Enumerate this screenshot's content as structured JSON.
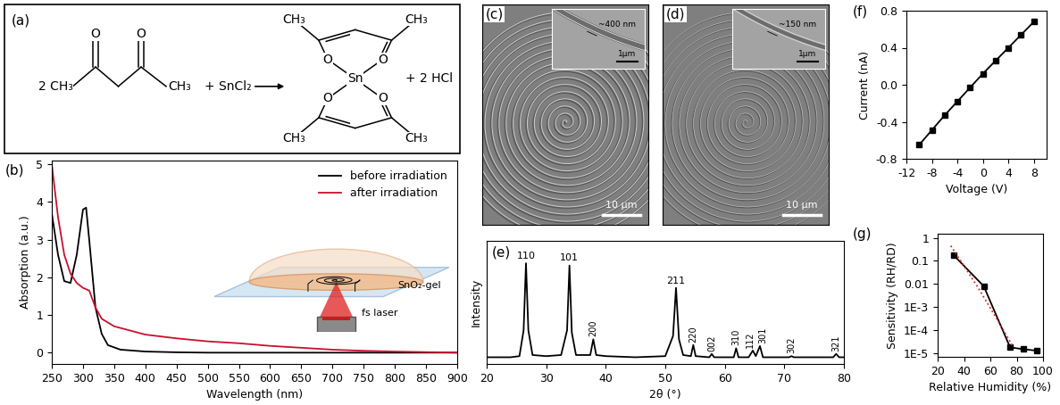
{
  "chart_data": [
    {
      "panel": "(b)",
      "type": "line",
      "xlabel": "Wavelength (nm)",
      "ylabel": "Absorption (a.u.)",
      "xlim": [
        250,
        900
      ],
      "xticks": [
        250,
        300,
        350,
        400,
        450,
        500,
        550,
        600,
        650,
        700,
        750,
        800,
        850,
        900
      ],
      "ylim": [
        -0.3,
        5.1
      ],
      "yticks": [
        0,
        1,
        2,
        3,
        4,
        5
      ],
      "legend": "upper right",
      "annotations": [
        "SnO₂-gel",
        "fs laser"
      ],
      "series": [
        {
          "name": "before irradiation",
          "color": "#000000",
          "line_style": "solid",
          "x": [
            250,
            260,
            270,
            280,
            290,
            300,
            305,
            310,
            320,
            330,
            340,
            360,
            400,
            450,
            500,
            600,
            700,
            800,
            900
          ],
          "values": [
            3.7,
            2.6,
            1.9,
            1.85,
            2.6,
            3.8,
            3.85,
            3.0,
            1.2,
            0.5,
            0.2,
            0.08,
            0.03,
            0.01,
            0.0,
            0.0,
            0.0,
            0.0,
            0.0
          ]
        },
        {
          "name": "after irradiation",
          "color": "#c8102e",
          "line_style": "solid",
          "x": [
            250,
            260,
            270,
            280,
            290,
            300,
            310,
            320,
            330,
            350,
            400,
            450,
            500,
            550,
            600,
            650,
            700,
            750,
            800,
            900
          ],
          "values": [
            5.0,
            3.6,
            2.6,
            2.1,
            1.85,
            1.72,
            1.65,
            1.2,
            0.9,
            0.7,
            0.48,
            0.38,
            0.3,
            0.25,
            0.18,
            0.13,
            0.08,
            0.05,
            0.03,
            0.0
          ]
        }
      ]
    },
    {
      "panel": "(e)",
      "type": "line",
      "xlabel": "2θ (°)",
      "ylabel": "Intensity",
      "xlim": [
        20,
        80
      ],
      "xticks": [
        20,
        30,
        40,
        50,
        60,
        70,
        80
      ],
      "ylim": [
        0,
        110
      ],
      "tick_labels": "x",
      "series": [
        {
          "color": "#000000",
          "line_style": "solid",
          "x": [
            20,
            22,
            24,
            25.5,
            26.2,
            26.6,
            27.0,
            27.7,
            30,
            32.5,
            33.5,
            33.9,
            34.3,
            35,
            37.4,
            37.9,
            38.4,
            40,
            45,
            50,
            51.3,
            51.8,
            52.3,
            53,
            54.3,
            54.7,
            55.1,
            57.4,
            57.8,
            58.2,
            60,
            61.5,
            61.9,
            62.3,
            64.0,
            64.7,
            65.2,
            65.9,
            66.4,
            68,
            70.8,
            71.2,
            71.6,
            75,
            78.2,
            78.7,
            79.2,
            80
          ],
          "values": [
            6,
            6,
            6,
            7,
            30,
            90,
            30,
            8,
            7,
            8,
            30,
            88,
            28,
            8,
            8,
            22,
            8,
            7,
            6,
            7,
            25,
            68,
            22,
            8,
            7,
            17,
            7,
            6,
            9,
            6,
            6,
            6,
            14,
            6,
            6,
            12,
            7,
            16,
            6,
            6,
            6,
            7,
            6,
            6,
            6,
            9,
            6,
            6
          ]
        }
      ],
      "peak_labels": [
        {
          "label": "110",
          "x": 26.6,
          "value": 90
        },
        {
          "label": "101",
          "x": 33.9,
          "value": 88
        },
        {
          "label": "200",
          "x": 37.9,
          "value": 22
        },
        {
          "label": "211",
          "x": 51.8,
          "value": 68
        },
        {
          "label": "220",
          "x": 54.7,
          "value": 17
        },
        {
          "label": "002",
          "x": 57.8,
          "value": 9
        },
        {
          "label": "310",
          "x": 61.9,
          "value": 14
        },
        {
          "label": "112",
          "x": 64.7,
          "value": 12
        },
        {
          "label": "301",
          "x": 65.9,
          "value": 16
        },
        {
          "label": "302",
          "x": 71.2,
          "value": 7
        },
        {
          "label": "321",
          "x": 78.7,
          "value": 9
        }
      ]
    },
    {
      "panel": "(f)",
      "type": "line",
      "xlabel": "Voltage (V)",
      "ylabel": "Current (nA)",
      "xlim": [
        -12,
        10
      ],
      "xticks": [
        -12,
        -8,
        -4,
        0,
        4,
        8
      ],
      "ylim": [
        -0.8,
        0.8
      ],
      "yticks": [
        -0.8,
        -0.4,
        {
          "value": 0,
          "label": "0.0"
        },
        0.4,
        0.8
      ],
      "series": [
        {
          "color": "#000000",
          "marker": "square",
          "line_style": "solid",
          "x": [
            -10,
            -8,
            -6,
            -4,
            -2,
            0,
            2,
            4,
            6,
            8
          ],
          "values": [
            -0.65,
            -0.49,
            -0.33,
            -0.18,
            -0.03,
            0.12,
            0.26,
            0.4,
            0.54,
            0.68
          ]
        }
      ]
    },
    {
      "panel": "(g)",
      "type": "line",
      "xlabel": "Relative Humidity (%)",
      "ylabel": "Sensitivity (RH/RD)",
      "log": "y",
      "xlim": [
        20,
        100
      ],
      "xticks": [
        20,
        40,
        60,
        80,
        100
      ],
      "ylim": [
        7e-06,
        1.5
      ],
      "yticks": [
        1,
        0.1,
        0.01,
        {
          "value": 0.001,
          "label": "1E-3"
        },
        {
          "value": 0.0001,
          "label": "1E-4"
        },
        {
          "value": 1e-05,
          "label": "1E-5"
        }
      ],
      "series": [
        {
          "color": "#000000",
          "marker": "square",
          "line_style": "solid",
          "x": [
            32,
            55,
            75,
            85,
            95
          ],
          "values": [
            0.18,
            0.008,
            1.8e-05,
            1.5e-05,
            1.3e-05
          ]
        },
        {
          "color": "#d62728",
          "line_style": "dotted",
          "x": [
            30,
            40,
            50,
            60,
            70,
            77
          ],
          "values": [
            0.45,
            0.06,
            0.008,
            0.0009,
            0.0001,
            2e-05
          ]
        }
      ]
    }
  ],
  "scheme": {
    "panel": "(a)",
    "reactant": {
      "left_group": "2 CH₃",
      "right_group": "CH₃",
      "oxygens": [
        "O",
        "O"
      ]
    },
    "reagent": "+ SnCl₂",
    "product": {
      "metal": "Sn",
      "methyls": [
        "CH₃",
        "CH₃",
        "CH₃",
        "CH₃"
      ],
      "oxygens": [
        "O",
        "O",
        "O",
        "O"
      ]
    },
    "byproduct": "+ 2 HCl"
  },
  "images": [
    {
      "panel": "(c)",
      "scale_bar": "10 μm",
      "inset": {
        "scale_bar": "1μm",
        "feature": "~400 nm"
      }
    },
    {
      "panel": "(d)",
      "scale_bar": "10 μm",
      "inset": {
        "scale_bar": "1μm",
        "feature": "~150 nm"
      }
    }
  ]
}
